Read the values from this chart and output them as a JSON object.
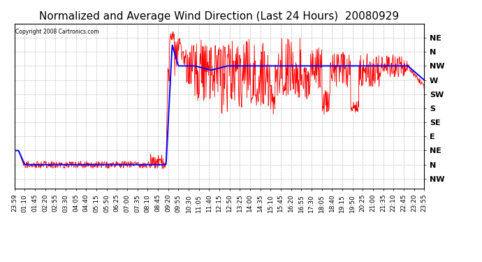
{
  "title": "Normalized and Average Wind Direction (Last 24 Hours)  20080929",
  "copyright": "Copyright 2008 Cartronics.com",
  "background_color": "#ffffff",
  "plot_bg_color": "#ffffff",
  "grid_color": "#bbbbbb",
  "y_labels": [
    "NE",
    "N",
    "NW",
    "W",
    "SW",
    "S",
    "SE",
    "E",
    "NE",
    "N",
    "NW"
  ],
  "y_values": [
    11,
    10,
    9,
    8,
    7,
    6,
    5,
    4,
    3,
    2,
    1
  ],
  "x_tick_labels": [
    "23:59",
    "01:10",
    "01:45",
    "02:20",
    "02:55",
    "03:30",
    "04:05",
    "04:40",
    "05:15",
    "05:50",
    "06:25",
    "07:00",
    "07:35",
    "08:10",
    "08:45",
    "09:20",
    "09:55",
    "10:30",
    "11:05",
    "11:40",
    "12:15",
    "12:50",
    "13:25",
    "14:00",
    "14:35",
    "15:10",
    "15:45",
    "16:20",
    "16:55",
    "17:30",
    "18:05",
    "18:40",
    "19:15",
    "19:50",
    "20:25",
    "21:00",
    "21:35",
    "22:10",
    "22:45",
    "23:20",
    "23:55"
  ],
  "red_line_color": "#ff0000",
  "blue_line_color": "#0000ff",
  "title_fontsize": 11,
  "axis_fontsize": 6.5,
  "ylabel_fontsize": 8,
  "figsize": [
    6.9,
    3.75
  ],
  "dpi": 100
}
